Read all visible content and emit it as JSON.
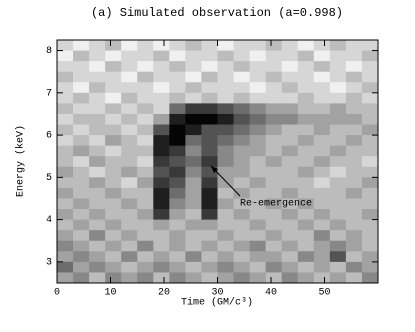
{
  "chart_data": {
    "type": "heatmap",
    "title": "(a) Simulated observation (a=0.998)",
    "xlabel": "Time (GM/c³)",
    "ylabel": "Energy (keV)",
    "annotation": "Re-emergence",
    "xlim": [
      0,
      60
    ],
    "ylim": [
      2.5,
      8.25
    ],
    "xticks": [
      0,
      10,
      20,
      30,
      40,
      50
    ],
    "yticks": [
      3,
      4,
      5,
      6,
      7,
      8
    ],
    "zlim": [
      0,
      9
    ],
    "colormap": "gray_r",
    "z": [
      [
        1,
        0,
        1,
        2,
        0,
        1,
        0,
        1,
        2,
        1,
        0,
        1,
        1,
        2,
        1,
        0,
        1,
        2,
        1,
        1
      ],
      [
        0,
        2,
        1,
        0,
        1,
        1,
        2,
        0,
        1,
        1,
        2,
        1,
        0,
        1,
        1,
        2,
        0,
        1,
        1,
        2
      ],
      [
        1,
        1,
        0,
        2,
        1,
        0,
        1,
        2,
        1,
        0,
        1,
        2,
        1,
        1,
        0,
        1,
        2,
        1,
        0,
        1
      ],
      [
        2,
        1,
        1,
        1,
        0,
        2,
        1,
        1,
        0,
        2,
        1,
        0,
        1,
        2,
        1,
        1,
        0,
        1,
        2,
        1
      ],
      [
        1,
        0,
        2,
        1,
        1,
        1,
        0,
        1,
        2,
        1,
        1,
        1,
        0,
        1,
        2,
        1,
        1,
        0,
        1,
        2
      ],
      [
        1,
        2,
        1,
        0,
        2,
        1,
        1,
        2,
        1,
        2,
        1,
        2,
        1,
        1,
        1,
        2,
        1,
        1,
        2,
        1
      ],
      [
        2,
        1,
        1,
        2,
        1,
        2,
        1,
        5,
        7,
        7,
        6,
        5,
        4,
        3,
        3,
        2,
        2,
        3,
        2,
        2
      ],
      [
        1,
        2,
        2,
        1,
        2,
        1,
        3,
        8,
        9,
        9,
        8,
        6,
        5,
        4,
        4,
        3,
        3,
        3,
        3,
        2
      ],
      [
        2,
        1,
        2,
        2,
        1,
        2,
        6,
        9,
        8,
        6,
        6,
        5,
        4,
        3,
        2,
        2,
        3,
        2,
        2,
        3
      ],
      [
        1,
        2,
        1,
        3,
        2,
        1,
        8,
        9,
        5,
        6,
        5,
        4,
        3,
        2,
        2,
        3,
        2,
        2,
        3,
        2
      ],
      [
        2,
        3,
        2,
        1,
        2,
        2,
        8,
        7,
        4,
        6,
        4,
        3,
        3,
        2,
        3,
        2,
        2,
        3,
        2,
        2
      ],
      [
        2,
        1,
        3,
        2,
        2,
        1,
        7,
        6,
        5,
        7,
        4,
        3,
        2,
        3,
        2,
        2,
        3,
        2,
        2,
        1
      ],
      [
        3,
        2,
        1,
        2,
        3,
        2,
        6,
        7,
        4,
        6,
        3,
        3,
        2,
        2,
        2,
        3,
        2,
        1,
        2,
        2
      ],
      [
        2,
        2,
        3,
        2,
        1,
        3,
        7,
        6,
        3,
        7,
        3,
        2,
        3,
        2,
        2,
        2,
        1,
        2,
        2,
        3
      ],
      [
        3,
        2,
        2,
        3,
        2,
        2,
        8,
        5,
        3,
        8,
        2,
        3,
        2,
        2,
        3,
        2,
        2,
        2,
        3,
        2
      ],
      [
        2,
        3,
        2,
        2,
        3,
        2,
        8,
        4,
        3,
        8,
        3,
        2,
        2,
        3,
        2,
        3,
        2,
        2,
        2,
        2
      ],
      [
        3,
        2,
        3,
        2,
        2,
        3,
        7,
        3,
        2,
        7,
        2,
        3,
        2,
        2,
        3,
        2,
        3,
        2,
        2,
        3
      ],
      [
        2,
        3,
        2,
        3,
        2,
        2,
        3,
        2,
        3,
        3,
        2,
        2,
        3,
        2,
        2,
        3,
        2,
        3,
        2,
        2
      ],
      [
        3,
        2,
        4,
        2,
        3,
        2,
        2,
        3,
        2,
        2,
        3,
        2,
        2,
        3,
        2,
        2,
        4,
        2,
        3,
        2
      ],
      [
        4,
        3,
        2,
        3,
        2,
        4,
        2,
        3,
        2,
        3,
        2,
        3,
        4,
        2,
        3,
        2,
        3,
        4,
        3,
        2
      ],
      [
        3,
        4,
        3,
        2,
        4,
        2,
        3,
        2,
        4,
        2,
        3,
        2,
        3,
        3,
        2,
        4,
        3,
        6,
        2,
        3
      ],
      [
        5,
        3,
        4,
        3,
        2,
        3,
        4,
        3,
        2,
        3,
        4,
        3,
        2,
        4,
        3,
        2,
        3,
        2,
        4,
        3
      ],
      [
        3,
        4,
        2,
        4,
        3,
        4,
        2,
        4,
        3,
        2,
        3,
        4,
        3,
        2,
        4,
        3,
        2,
        3,
        2,
        4
      ]
    ]
  }
}
